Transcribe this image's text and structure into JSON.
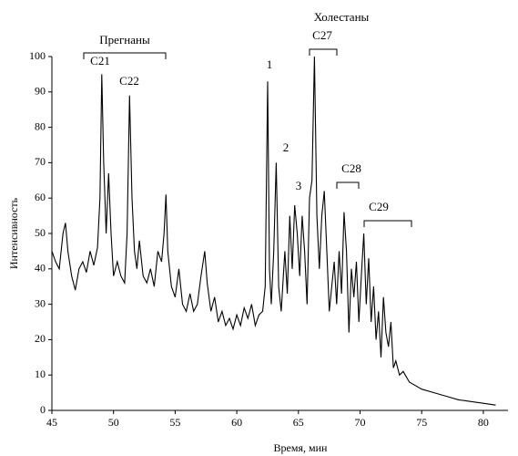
{
  "chart_data": {
    "type": "line",
    "xlabel": "Время, мин",
    "ylabel": "Интенсивность",
    "annotations": [
      "Прегнаны",
      "C21",
      "C22",
      "Холестаны",
      "C27",
      "1",
      "2",
      "3",
      "C28",
      "C29"
    ],
    "xlim": [
      45,
      82
    ],
    "ylim": [
      0,
      100
    ],
    "xticks": [
      45,
      50,
      55,
      60,
      65,
      70,
      75,
      80
    ],
    "yticks": [
      0,
      10,
      20,
      30,
      40,
      50,
      60,
      70,
      80,
      90,
      100
    ],
    "grid": false,
    "series": [
      {
        "color": "#000000",
        "x": [
          45,
          45.3,
          45.6,
          45.9,
          46.1,
          46.3,
          46.6,
          46.9,
          47.2,
          47.5,
          47.8,
          48.1,
          48.4,
          48.7,
          48.9,
          49.05,
          49.2,
          49.4,
          49.6,
          49.8,
          50.0,
          50.3,
          50.6,
          50.9,
          51.1,
          51.3,
          51.5,
          51.7,
          51.9,
          52.1,
          52.4,
          52.7,
          53.0,
          53.3,
          53.6,
          53.9,
          54.1,
          54.25,
          54.4,
          54.7,
          55.0,
          55.3,
          55.6,
          55.9,
          56.2,
          56.5,
          56.8,
          57.1,
          57.4,
          57.6,
          57.9,
          58.2,
          58.5,
          58.8,
          59.1,
          59.4,
          59.7,
          60.0,
          60.3,
          60.6,
          60.9,
          61.2,
          61.5,
          61.8,
          62.1,
          62.3,
          62.5,
          62.65,
          62.8,
          63.0,
          63.2,
          63.4,
          63.6,
          63.9,
          64.1,
          64.3,
          64.5,
          64.7,
          64.9,
          65.1,
          65.3,
          65.5,
          65.7,
          65.9,
          66.1,
          66.3,
          66.5,
          66.7,
          66.9,
          67.1,
          67.3,
          67.5,
          67.7,
          67.9,
          68.1,
          68.3,
          68.5,
          68.7,
          68.9,
          69.1,
          69.3,
          69.5,
          69.7,
          69.9,
          70.1,
          70.3,
          70.5,
          70.7,
          70.9,
          71.1,
          71.3,
          71.5,
          71.7,
          71.9,
          72.1,
          72.3,
          72.5,
          72.7,
          72.9,
          73.2,
          73.5,
          74,
          74.5,
          75,
          76,
          77,
          78,
          79,
          80,
          81
        ],
        "values": [
          45,
          42,
          40,
          50,
          53,
          45,
          38,
          34,
          40,
          42,
          39,
          45,
          41,
          46,
          60,
          95,
          70,
          50,
          67,
          50,
          38,
          42,
          38,
          36,
          50,
          89,
          60,
          45,
          40,
          48,
          38,
          36,
          40,
          35,
          45,
          42,
          50,
          61,
          45,
          35,
          32,
          40,
          30,
          28,
          33,
          28,
          30,
          38,
          45,
          36,
          28,
          32,
          25,
          28,
          24,
          26,
          23,
          27,
          24,
          29,
          26,
          30,
          24,
          27,
          28,
          35,
          93,
          40,
          30,
          45,
          70,
          35,
          28,
          45,
          33,
          55,
          40,
          58,
          50,
          38,
          55,
          45,
          30,
          60,
          65,
          100,
          55,
          40,
          55,
          62,
          45,
          28,
          35,
          42,
          30,
          45,
          33,
          56,
          45,
          22,
          40,
          32,
          42,
          25,
          38,
          50,
          30,
          43,
          25,
          35,
          20,
          28,
          15,
          32,
          22,
          18,
          25,
          12,
          14,
          10,
          11,
          8,
          7,
          6,
          5,
          4,
          3,
          2.5,
          2,
          1.5
        ]
      }
    ]
  }
}
